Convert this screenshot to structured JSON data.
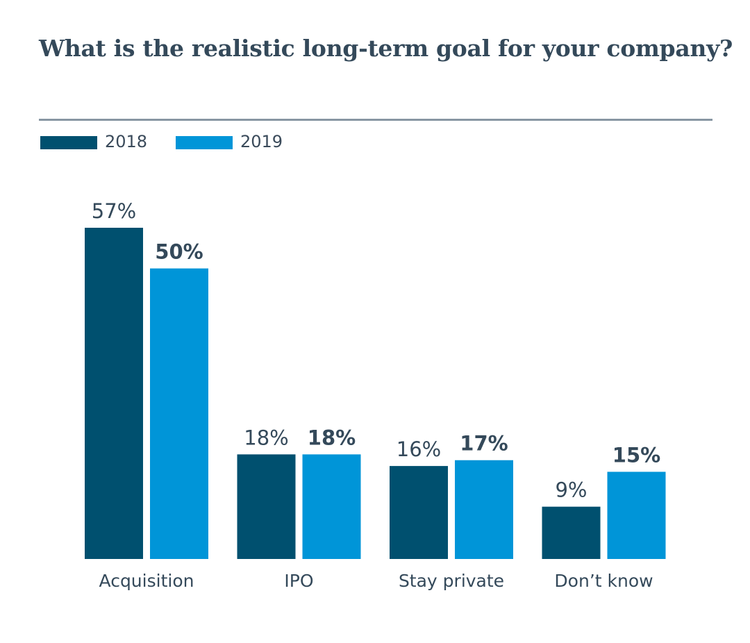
{
  "colors": {
    "series_2018": "#00506f",
    "series_2019": "#0095d8",
    "text": "#34495a",
    "rule": "#8896a3"
  },
  "chart_data": {
    "type": "bar",
    "title": "What is the realistic long-term goal for your company?",
    "categories": [
      "Acquisition",
      "IPO",
      "Stay private",
      "Don’t know"
    ],
    "series": [
      {
        "name": "2018",
        "values": [
          57,
          18,
          16,
          9
        ],
        "labels": [
          "57%",
          "18%",
          "16%",
          "9%"
        ],
        "label_weight": "normal"
      },
      {
        "name": "2019",
        "values": [
          50,
          18,
          17,
          15
        ],
        "labels": [
          "50%",
          "18%",
          "17%",
          "15%"
        ],
        "label_weight": "bold"
      }
    ],
    "ylim": [
      0,
      57
    ],
    "legend_position": "top-left",
    "grid": false,
    "xlabel": "",
    "ylabel": ""
  }
}
